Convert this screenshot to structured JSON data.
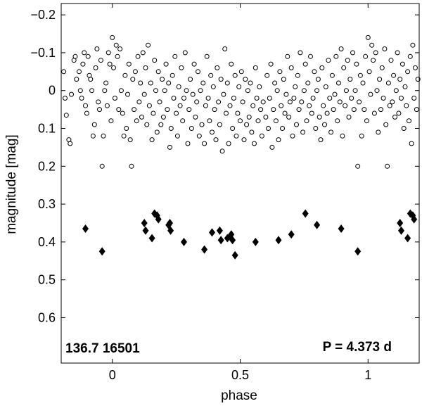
{
  "chart_data": {
    "type": "scatter",
    "xlabel": "phase",
    "ylabel": "magnitude  [mag]",
    "xlim": [
      -0.2,
      1.2
    ],
    "ylim": [
      -0.23,
      0.72
    ],
    "y_reversed": true,
    "xticks": [
      0,
      0.5,
      1
    ],
    "xtick_labels": [
      "0",
      "0.5",
      "1"
    ],
    "yticks": [
      -0.2,
      -0.1,
      0,
      0.1,
      0.2,
      0.3,
      0.4,
      0.5,
      0.6
    ],
    "ytick_labels": [
      "−0.2",
      "−0.1",
      "0",
      "0.1",
      "0.2",
      "0.3",
      "0.4",
      "0.5",
      "0.6"
    ],
    "grid": false,
    "legend": "none",
    "annotations": {
      "left": "136.7 16501",
      "right": "P = 4.373 d"
    },
    "series": [
      {
        "marker": "open-circle",
        "color": "#000000",
        "points": [
          [
            -0.19,
            -0.05
          ],
          [
            -0.185,
            0.02
          ],
          [
            -0.18,
            0.065
          ],
          [
            -0.17,
            0.13
          ],
          [
            -0.165,
            0.14
          ],
          [
            -0.16,
            0.01
          ],
          [
            -0.15,
            -0.08
          ],
          [
            -0.145,
            -0.09
          ],
          [
            -0.14,
            -0.03
          ],
          [
            -0.13,
            -0.05
          ],
          [
            -0.125,
            0.0
          ],
          [
            -0.12,
            0.02
          ],
          [
            -0.115,
            -0.07
          ],
          [
            -0.11,
            -0.1
          ],
          [
            -0.105,
            0.04
          ],
          [
            -0.1,
            0.06
          ],
          [
            -0.095,
            -0.09
          ],
          [
            -0.09,
            -0.04
          ],
          [
            -0.085,
            -0.03
          ],
          [
            -0.08,
            0.0
          ],
          [
            -0.075,
            0.12
          ],
          [
            -0.07,
            0.09
          ],
          [
            -0.065,
            -0.06
          ],
          [
            -0.06,
            -0.11
          ],
          [
            -0.055,
            0.03
          ],
          [
            -0.05,
            0.05
          ],
          [
            -0.045,
            -0.08
          ],
          [
            -0.04,
            0.2
          ],
          [
            -0.035,
            0.12
          ],
          [
            -0.03,
            0.0
          ],
          [
            -0.025,
            -0.02
          ],
          [
            -0.02,
            0.04
          ],
          [
            -0.015,
            -0.1
          ],
          [
            -0.01,
            -0.07
          ],
          [
            -0.005,
            0.08
          ],
          [
            0.0,
            -0.14
          ],
          [
            0.005,
            -0.06
          ],
          [
            0.01,
            0.02
          ],
          [
            0.015,
            -0.12
          ],
          [
            0.02,
            -0.09
          ],
          [
            0.025,
            0.05
          ],
          [
            0.03,
            -0.11
          ],
          [
            0.035,
            0.0
          ],
          [
            0.04,
            0.06
          ],
          [
            0.045,
            0.12
          ],
          [
            0.05,
            -0.04
          ],
          [
            0.055,
            0.1
          ],
          [
            0.06,
            0.01
          ],
          [
            0.065,
            -0.07
          ],
          [
            0.07,
            0.13
          ],
          [
            0.075,
            0.2
          ],
          [
            0.08,
            -0.03
          ],
          [
            0.085,
            0.05
          ],
          [
            0.09,
            -0.05
          ],
          [
            0.095,
            0.08
          ],
          [
            0.1,
            -0.09
          ],
          [
            0.105,
            0.03
          ],
          [
            0.11,
            -0.02
          ],
          [
            0.115,
            0.07
          ],
          [
            0.12,
            -0.1
          ],
          [
            0.125,
            0.01
          ],
          [
            0.13,
            -0.06
          ],
          [
            0.135,
            0.09
          ],
          [
            0.14,
            -0.12
          ],
          [
            0.145,
            0.04
          ],
          [
            0.15,
            -0.02
          ],
          [
            0.155,
            0.13
          ],
          [
            0.16,
            0.06
          ],
          [
            0.165,
            -0.08
          ],
          [
            0.17,
            0.0
          ],
          [
            0.175,
            0.11
          ],
          [
            0.18,
            -0.05
          ],
          [
            0.185,
            0.03
          ],
          [
            0.19,
            0.09
          ],
          [
            0.195,
            -0.03
          ],
          [
            0.2,
            0.07
          ],
          [
            0.205,
            0.0
          ],
          [
            0.21,
            -0.07
          ],
          [
            0.215,
            0.05
          ],
          [
            0.22,
            -0.02
          ],
          [
            0.225,
            0.15
          ],
          [
            0.23,
            0.1
          ],
          [
            0.235,
            -0.04
          ],
          [
            0.24,
            0.02
          ],
          [
            0.245,
            -0.09
          ],
          [
            0.25,
            0.06
          ],
          [
            0.255,
            0.12
          ],
          [
            0.26,
            -0.01
          ],
          [
            0.265,
            0.04
          ],
          [
            0.27,
            -0.06
          ],
          [
            0.275,
            0.08
          ],
          [
            0.28,
            0.02
          ],
          [
            0.285,
            -0.1
          ],
          [
            0.29,
            0.0
          ],
          [
            0.295,
            0.14
          ],
          [
            0.3,
            0.05
          ],
          [
            0.305,
            -0.03
          ],
          [
            0.31,
            0.1
          ],
          [
            0.315,
            0.01
          ],
          [
            0.32,
            -0.07
          ],
          [
            0.325,
            0.07
          ],
          [
            0.33,
            0.03
          ],
          [
            0.335,
            -0.05
          ],
          [
            0.34,
            0.12
          ],
          [
            0.345,
            0.0
          ],
          [
            0.35,
            0.09
          ],
          [
            0.355,
            -0.02
          ],
          [
            0.36,
            0.14
          ],
          [
            0.365,
            0.04
          ],
          [
            0.37,
            -0.09
          ],
          [
            0.375,
            0.02
          ],
          [
            0.38,
            0.08
          ],
          [
            0.385,
            -0.04
          ],
          [
            0.39,
            0.11
          ],
          [
            0.395,
            -0.01
          ],
          [
            0.4,
            0.05
          ],
          [
            0.405,
            0.13
          ],
          [
            0.41,
            -0.06
          ],
          [
            0.415,
            0.03
          ],
          [
            0.42,
            0.09
          ],
          [
            0.425,
            -0.03
          ],
          [
            0.43,
            0.16
          ],
          [
            0.435,
            0.01
          ],
          [
            0.44,
            -0.11
          ],
          [
            0.445,
            0.06
          ],
          [
            0.45,
            -0.02
          ],
          [
            0.455,
            0.14
          ],
          [
            0.46,
            0.04
          ],
          [
            0.465,
            -0.07
          ],
          [
            0.47,
            0.1
          ],
          [
            0.475,
            0.02
          ],
          [
            0.48,
            -0.04
          ],
          [
            0.485,
            0.12
          ],
          [
            0.49,
            0.06
          ],
          [
            0.495,
            -0.01
          ],
          [
            0.5,
            0.08
          ],
          [
            0.505,
            -0.05
          ],
          [
            0.51,
            0.03
          ],
          [
            0.515,
            0.13
          ],
          [
            0.52,
            -0.03
          ],
          [
            0.525,
            0.09
          ],
          [
            0.53,
            0.0
          ],
          [
            0.535,
            0.07
          ],
          [
            0.54,
            -0.02
          ],
          [
            0.545,
            0.11
          ],
          [
            0.55,
            0.04
          ],
          [
            0.555,
            0.14
          ],
          [
            0.56,
            -0.06
          ],
          [
            0.565,
            0.02
          ],
          [
            0.57,
            0.08
          ],
          [
            0.575,
            -0.01
          ],
          [
            0.58,
            0.05
          ],
          [
            0.585,
            0.12
          ],
          [
            0.59,
            0.03
          ],
          [
            0.6,
            0.07
          ],
          [
            0.605,
            -0.04
          ],
          [
            0.61,
            0.1
          ],
          [
            0.615,
            0.02
          ],
          [
            0.62,
            -0.07
          ],
          [
            0.625,
            0.15
          ],
          [
            0.63,
            0.05
          ],
          [
            0.635,
            -0.02
          ],
          [
            0.64,
            0.08
          ],
          [
            0.645,
            0.0
          ],
          [
            0.65,
            0.13
          ],
          [
            0.655,
            -0.05
          ],
          [
            0.66,
            0.04
          ],
          [
            0.665,
            0.1
          ],
          [
            0.67,
            -0.03
          ],
          [
            0.675,
            0.06
          ],
          [
            0.68,
            0.01
          ],
          [
            0.685,
            -0.09
          ],
          [
            0.69,
            0.07
          ],
          [
            0.695,
            0.03
          ],
          [
            0.7,
            -0.06
          ],
          [
            0.705,
            0.12
          ],
          [
            0.71,
            0.02
          ],
          [
            0.715,
            -0.01
          ],
          [
            0.72,
            0.09
          ],
          [
            0.725,
            -0.04
          ],
          [
            0.73,
            0.05
          ],
          [
            0.735,
            -0.1
          ],
          [
            0.74,
            0.03
          ],
          [
            0.745,
            0.11
          ],
          [
            0.75,
            0.0
          ],
          [
            0.755,
            -0.07
          ],
          [
            0.76,
            0.08
          ],
          [
            0.765,
            -0.02
          ],
          [
            0.77,
            0.04
          ],
          [
            0.775,
            -0.09
          ],
          [
            0.78,
            0.06
          ],
          [
            0.785,
            0.02
          ],
          [
            0.79,
            -0.05
          ],
          [
            0.795,
            0.1
          ],
          [
            0.8,
            0.0
          ],
          [
            0.805,
            -0.03
          ],
          [
            0.81,
            0.07
          ],
          [
            0.815,
            0.13
          ],
          [
            0.82,
            -0.06
          ],
          [
            0.825,
            0.04
          ],
          [
            0.83,
            0.09
          ],
          [
            0.835,
            -0.01
          ],
          [
            0.84,
            0.06
          ],
          [
            0.845,
            -0.08
          ],
          [
            0.85,
            0.02
          ],
          [
            0.855,
            0.11
          ],
          [
            0.86,
            -0.04
          ],
          [
            0.865,
            0.05
          ],
          [
            0.87,
            0.01
          ],
          [
            0.875,
            -0.09
          ],
          [
            0.88,
            0.08
          ],
          [
            0.885,
            -0.02
          ],
          [
            0.89,
            0.03
          ],
          [
            0.895,
            -0.11
          ],
          [
            0.9,
            0.12
          ],
          [
            0.905,
            -0.06
          ],
          [
            0.91,
            0.04
          ],
          [
            0.915,
            0.0
          ],
          [
            0.92,
            -0.08
          ],
          [
            0.925,
            0.07
          ],
          [
            0.93,
            -0.03
          ],
          [
            0.935,
            0.02
          ],
          [
            0.94,
            -0.1
          ],
          [
            0.945,
            0.05
          ],
          [
            0.95,
            0.0
          ],
          [
            0.955,
            -0.07
          ],
          [
            0.96,
            0.2
          ],
          [
            0.965,
            0.03
          ],
          [
            0.97,
            -0.04
          ],
          [
            0.975,
            0.12
          ],
          [
            0.98,
            -0.02
          ],
          [
            0.985,
            0.05
          ],
          [
            0.99,
            -0.09
          ],
          [
            0.995,
            0.08
          ],
          [
            1.0,
            -0.14
          ],
          [
            1.005,
            -0.05
          ],
          [
            1.01,
            0.01
          ],
          [
            1.015,
            -0.12
          ],
          [
            1.02,
            -0.08
          ],
          [
            1.025,
            0.06
          ],
          [
            1.03,
            -0.1
          ],
          [
            1.035,
            0.0
          ],
          [
            1.04,
            0.11
          ],
          [
            1.045,
            -0.03
          ],
          [
            1.05,
            0.05
          ],
          [
            1.055,
            -0.06
          ],
          [
            1.06,
            0.02
          ],
          [
            1.065,
            -0.11
          ],
          [
            1.07,
            0.09
          ],
          [
            1.075,
            0.2
          ],
          [
            1.08,
            -0.02
          ],
          [
            1.085,
            0.04
          ],
          [
            1.09,
            -0.08
          ],
          [
            1.095,
            0.03
          ],
          [
            1.1,
            -0.04
          ],
          [
            1.105,
            0.07
          ],
          [
            1.11,
            0.0
          ],
          [
            1.115,
            -0.1
          ],
          [
            1.12,
            0.06
          ],
          [
            1.125,
            -0.03
          ],
          [
            1.13,
            0.02
          ],
          [
            1.135,
            -0.07
          ],
          [
            1.14,
            0.1
          ],
          [
            1.145,
            -0.01
          ],
          [
            1.15,
            0.04
          ],
          [
            1.155,
            -0.05
          ],
          [
            1.16,
            0.08
          ],
          [
            1.165,
            -0.09
          ],
          [
            1.17,
            0.14
          ],
          [
            1.175,
            -0.12
          ],
          [
            1.18,
            0.02
          ],
          [
            1.185,
            -0.06
          ],
          [
            1.19,
            0.05
          ],
          [
            1.195,
            -0.03
          ]
        ]
      },
      {
        "marker": "filled-diamond",
        "color": "#000000",
        "points": [
          [
            -0.105,
            0.365
          ],
          [
            -0.04,
            0.425
          ],
          [
            0.125,
            0.35
          ],
          [
            0.13,
            0.37
          ],
          [
            0.155,
            0.39
          ],
          [
            0.165,
            0.325
          ],
          [
            0.175,
            0.33
          ],
          [
            0.18,
            0.34
          ],
          [
            0.22,
            0.355
          ],
          [
            0.225,
            0.35
          ],
          [
            0.228,
            0.37
          ],
          [
            0.28,
            0.4
          ],
          [
            0.36,
            0.42
          ],
          [
            0.39,
            0.375
          ],
          [
            0.42,
            0.37
          ],
          [
            0.425,
            0.395
          ],
          [
            0.45,
            0.39
          ],
          [
            0.46,
            0.385
          ],
          [
            0.465,
            0.38
          ],
          [
            0.47,
            0.395
          ],
          [
            0.48,
            0.435
          ],
          [
            0.56,
            0.4
          ],
          [
            0.65,
            0.395
          ],
          [
            0.7,
            0.38
          ],
          [
            0.755,
            0.325
          ],
          [
            0.8,
            0.355
          ],
          [
            0.895,
            0.365
          ],
          [
            0.96,
            0.425
          ],
          [
            1.125,
            0.35
          ],
          [
            1.13,
            0.37
          ],
          [
            1.155,
            0.39
          ],
          [
            1.165,
            0.325
          ],
          [
            1.175,
            0.33
          ],
          [
            1.18,
            0.34
          ]
        ]
      }
    ]
  }
}
